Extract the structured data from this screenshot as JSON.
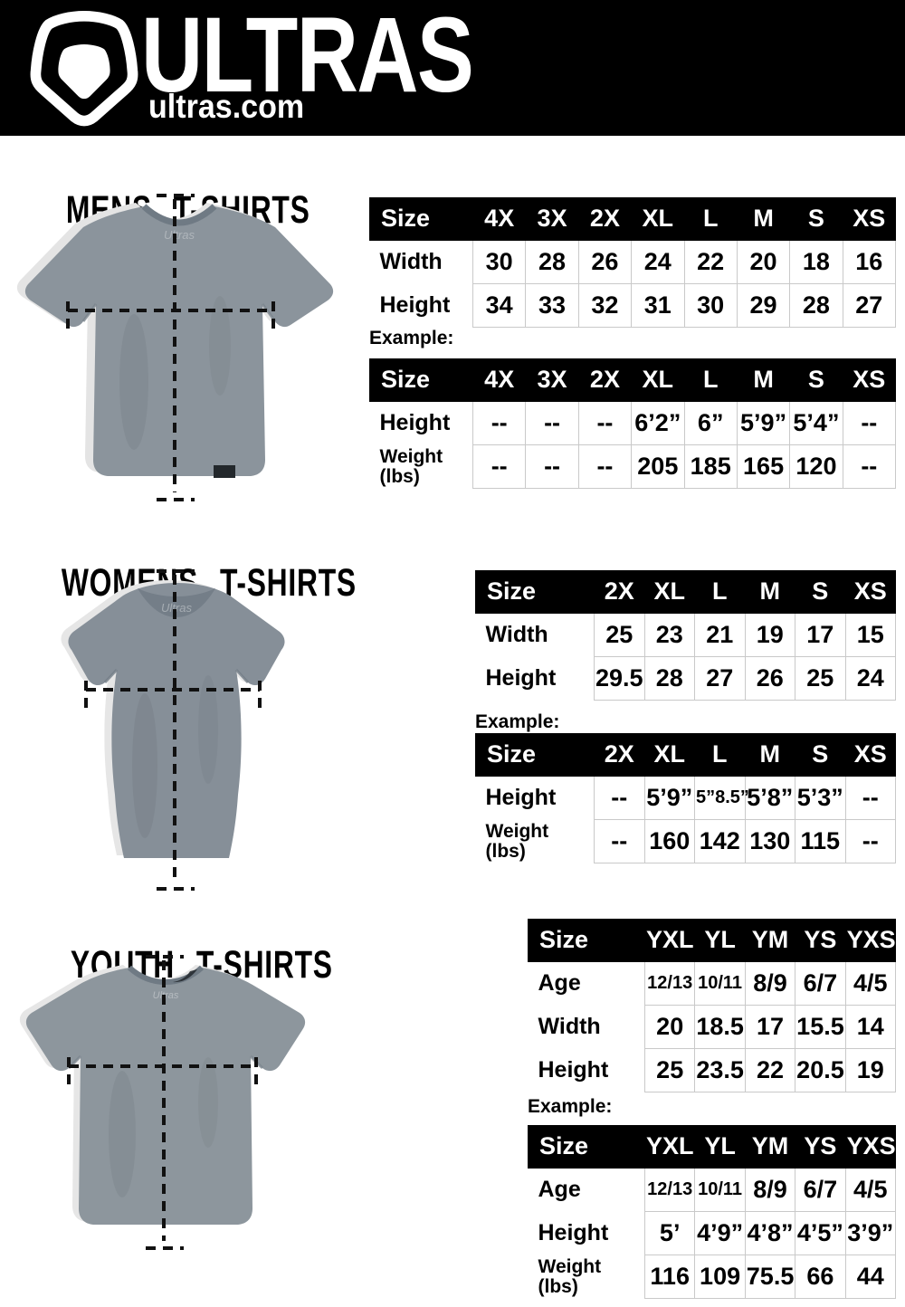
{
  "header": {
    "brand": "ULTRAS",
    "site": "ultras.com",
    "logo_icon": "pentagon-shield-icon"
  },
  "colors": {
    "banner_bg": "#000000",
    "banner_text": "#ffffff",
    "table_header_bg": "#000000",
    "table_header_text": "#ffffff",
    "table_border": "#c9c9c9",
    "shirt_gray": "#8b949c",
    "dashed_line": "#111111"
  },
  "sections": [
    {
      "id": "mens",
      "title": "MENS T-SHIRTS",
      "example_label": "Example:",
      "size_table": {
        "header": [
          "Size",
          "4X",
          "3X",
          "2X",
          "XL",
          "L",
          "M",
          "S",
          "XS"
        ],
        "rows": [
          {
            "label": "Width",
            "values": [
              "30",
              "28",
              "26",
              "24",
              "22",
              "20",
              "18",
              "16"
            ]
          },
          {
            "label": "Height",
            "values": [
              "34",
              "33",
              "32",
              "31",
              "30",
              "29",
              "28",
              "27"
            ]
          }
        ]
      },
      "example_table": {
        "header": [
          "Size",
          "4X",
          "3X",
          "2X",
          "XL",
          "L",
          "M",
          "S",
          "XS"
        ],
        "rows": [
          {
            "label": "Height",
            "values": [
              "--",
              "--",
              "--",
              "6’2”",
              "6”",
              "5’9”",
              "5’4”",
              "--"
            ]
          },
          {
            "label": "Weight (lbs)",
            "values": [
              "--",
              "--",
              "--",
              "205",
              "185",
              "165",
              "120",
              "--"
            ]
          }
        ]
      }
    },
    {
      "id": "womens",
      "title": "WOMENS T-SHIRTS",
      "example_label": "Example:",
      "size_table": {
        "header": [
          "Size",
          "2X",
          "XL",
          "L",
          "M",
          "S",
          "XS"
        ],
        "rows": [
          {
            "label": "Width",
            "values": [
              "25",
              "23",
              "21",
              "19",
              "17",
              "15"
            ]
          },
          {
            "label": "Height",
            "values": [
              "29.5",
              "28",
              "27",
              "26",
              "25",
              "24"
            ]
          }
        ]
      },
      "example_table": {
        "header": [
          "Size",
          "2X",
          "XL",
          "L",
          "M",
          "S",
          "XS"
        ],
        "rows": [
          {
            "label": "Height",
            "values": [
              "--",
              "5’9”",
              "5”8.5”",
              "5’8”",
              "5’3”",
              "--"
            ]
          },
          {
            "label": "Weight (lbs)",
            "values": [
              "--",
              "160",
              "142",
              "130",
              "115",
              "--"
            ]
          }
        ]
      }
    },
    {
      "id": "youth",
      "title": "YOUTH T-SHIRTS",
      "example_label": "Example:",
      "size_table": {
        "header": [
          "Size",
          "YXL",
          "YL",
          "YM",
          "YS",
          "YXS"
        ],
        "rows": [
          {
            "label": "Age",
            "values": [
              "12/13",
              "10/11",
              "8/9",
              "6/7",
              "4/5"
            ]
          },
          {
            "label": "Width",
            "values": [
              "20",
              "18.5",
              "17",
              "15.5",
              "14"
            ]
          },
          {
            "label": "Height",
            "values": [
              "25",
              "23.5",
              "22",
              "20.5",
              "19"
            ]
          }
        ]
      },
      "example_table": {
        "header": [
          "Size",
          "YXL",
          "YL",
          "YM",
          "YS",
          "YXS"
        ],
        "rows": [
          {
            "label": "Age",
            "values": [
              "12/13",
              "10/11",
              "8/9",
              "6/7",
              "4/5"
            ]
          },
          {
            "label": "Height",
            "values": [
              "5’",
              "4’9”",
              "4’8”",
              "4’5”",
              "3’9”"
            ]
          },
          {
            "label": "Weight (lbs)",
            "values": [
              "116",
              "109",
              "75.5",
              "66",
              "44"
            ]
          }
        ]
      }
    }
  ]
}
